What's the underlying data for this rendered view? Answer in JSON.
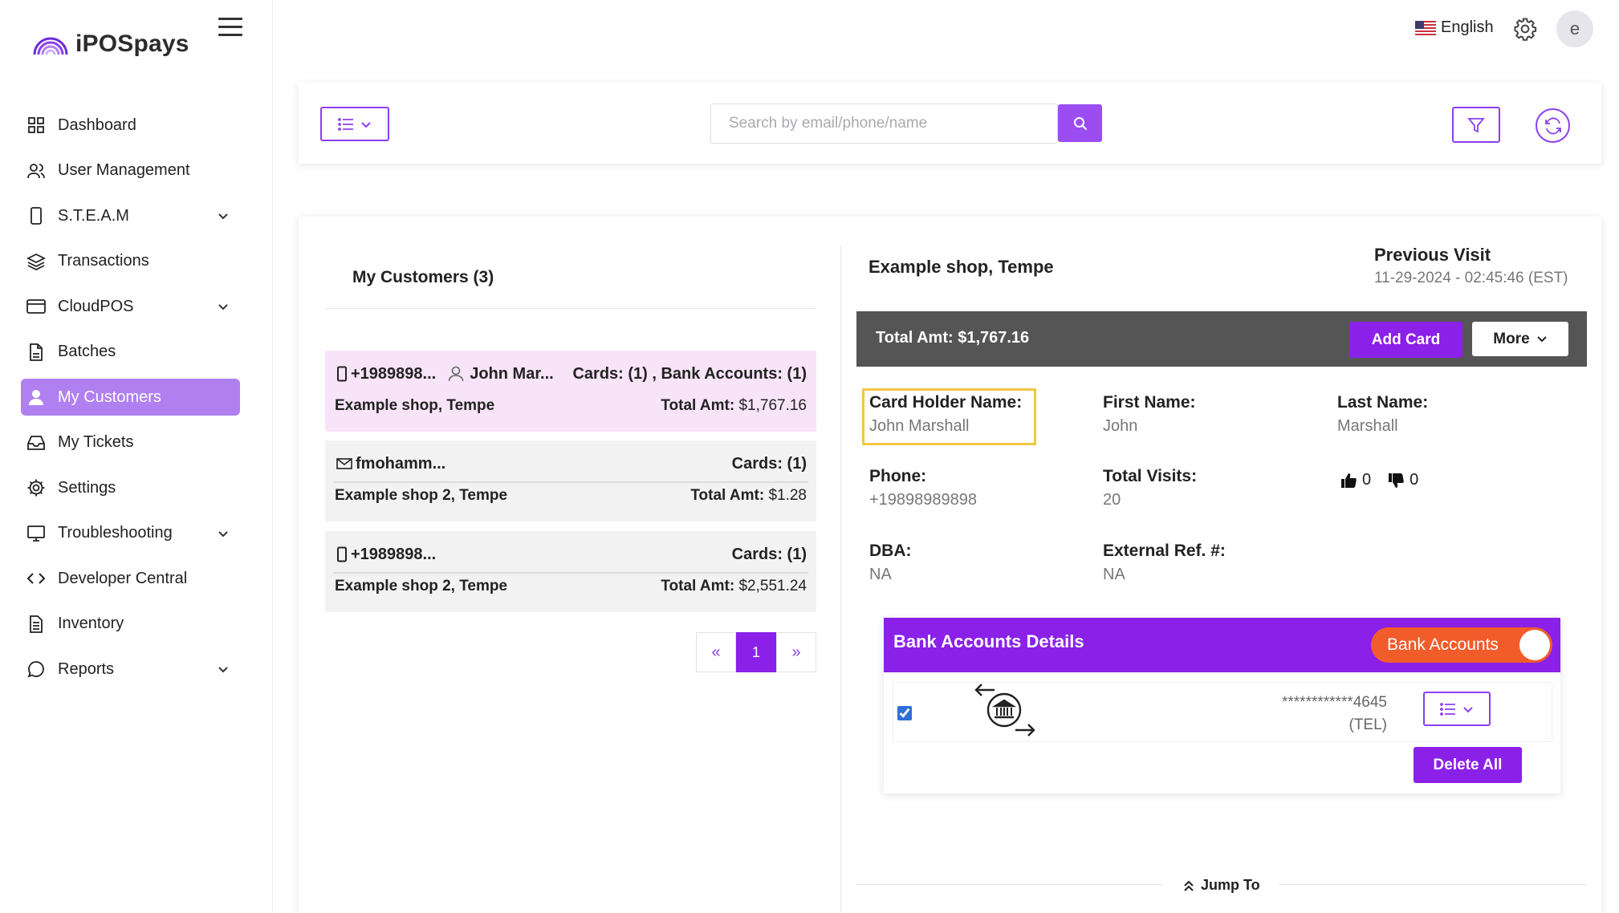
{
  "app": {
    "name": "iPOSpays"
  },
  "topbar": {
    "language": "English",
    "avatar_initial": "e"
  },
  "sidebar": {
    "items": [
      {
        "label": "Dashboard",
        "icon": "dashboard-icon",
        "has_children": false
      },
      {
        "label": "User Management",
        "icon": "users-icon",
        "has_children": false
      },
      {
        "label": "S.T.E.A.M",
        "icon": "mobile-icon",
        "has_children": true
      },
      {
        "label": "Transactions",
        "icon": "layers-icon",
        "has_children": false
      },
      {
        "label": "CloudPOS",
        "icon": "card-icon",
        "has_children": true
      },
      {
        "label": "Batches",
        "icon": "file-icon",
        "has_children": false
      },
      {
        "label": "My Customers",
        "icon": "user-icon",
        "has_children": false,
        "active": true
      },
      {
        "label": "My Tickets",
        "icon": "inbox-icon",
        "has_children": false
      },
      {
        "label": "Settings",
        "icon": "gear-icon",
        "has_children": false
      },
      {
        "label": "Troubleshooting",
        "icon": "monitor-icon",
        "has_children": true
      },
      {
        "label": "Developer Central",
        "icon": "code-icon",
        "has_children": false
      },
      {
        "label": "Inventory",
        "icon": "document-icon",
        "has_children": false
      },
      {
        "label": "Reports",
        "icon": "chat-icon",
        "has_children": true
      }
    ]
  },
  "toolbar": {
    "search_placeholder": "Search by email/phone/name",
    "search_value": ""
  },
  "customers": {
    "title": "My Customers (3)",
    "list": [
      {
        "contact": "+1989898...",
        "contact_type": "phone",
        "name": "John Mar...",
        "cards": "Cards: (1) , Bank Accounts: (1)",
        "shop": "Example shop, Tempe",
        "total_label": "Total Amt:",
        "total_value": "$1,767.16",
        "selected": true
      },
      {
        "contact": "fmohamm...",
        "contact_type": "email",
        "name": "",
        "cards": "Cards: (1)",
        "shop": "Example shop 2, Tempe",
        "total_label": "Total Amt:",
        "total_value": "$1.28",
        "selected": false
      },
      {
        "contact": "+1989898...",
        "contact_type": "phone",
        "name": "",
        "cards": "Cards: (1)",
        "shop": "Example shop 2, Tempe",
        "total_label": "Total Amt:",
        "total_value": "$2,551.24",
        "selected": false
      }
    ],
    "pagination": {
      "prev": "«",
      "current": "1",
      "next": "»"
    }
  },
  "details": {
    "shop": "Example shop, Tempe",
    "previous_visit_label": "Previous Visit",
    "previous_visit_value": "11-29-2024 - 02:45:46 (EST)",
    "total_amount": "Total Amt: $1,767.16",
    "add_card_label": "Add Card",
    "more_label": "More",
    "fields": {
      "card_holder_label": "Card Holder Name:",
      "card_holder_value": "John Marshall",
      "first_name_label": "First Name:",
      "first_name_value": "John",
      "last_name_label": "Last Name:",
      "last_name_value": "Marshall",
      "phone_label": "Phone:",
      "phone_value": "+19898989898",
      "total_visits_label": "Total Visits:",
      "total_visits_value": "20",
      "dba_label": "DBA:",
      "dba_value": "NA",
      "ext_ref_label": "External Ref. #:",
      "ext_ref_value": "NA"
    },
    "likes": "0",
    "dislikes": "0"
  },
  "bank": {
    "title": "Bank Accounts Details",
    "toggle_label": "Bank Accounts",
    "toggle_on": true,
    "account_number": "************4645",
    "account_type": "(TEL)",
    "checked": true,
    "delete_all_label": "Delete All"
  },
  "jump_to_label": "Jump To",
  "colors": {
    "accent": "#8b20e8",
    "sidebar_active": "#b07ff0",
    "toggle": "#f25c2a",
    "highlight": "#f2c744",
    "total_bar": "#555555"
  }
}
